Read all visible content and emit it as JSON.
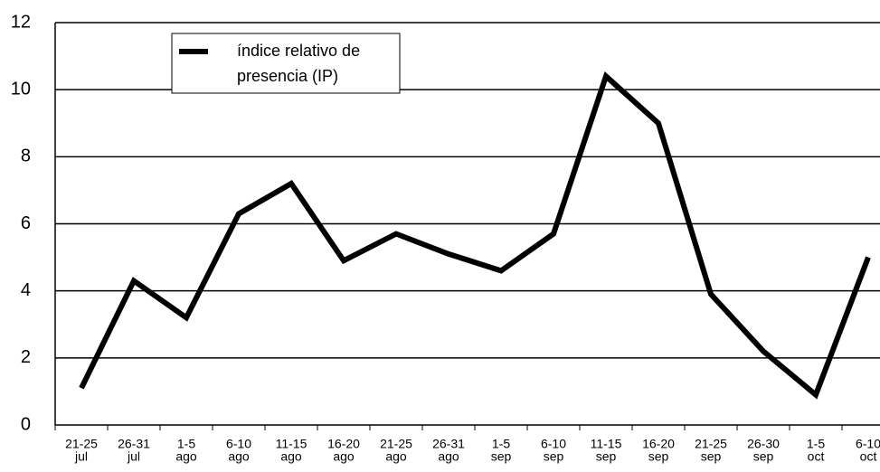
{
  "chart_data": {
    "type": "line",
    "categories": [
      [
        "21-25",
        "jul"
      ],
      [
        "26-31",
        "jul"
      ],
      [
        "1-5",
        "ago"
      ],
      [
        "6-10",
        "ago"
      ],
      [
        "11-15",
        "ago"
      ],
      [
        "16-20",
        "ago"
      ],
      [
        "21-25",
        "ago"
      ],
      [
        "26-31",
        "ago"
      ],
      [
        "1-5",
        "sep"
      ],
      [
        "6-10",
        "sep"
      ],
      [
        "11-15",
        "sep"
      ],
      [
        "16-20",
        "sep"
      ],
      [
        "21-25",
        "sep"
      ],
      [
        "26-30",
        "sep"
      ],
      [
        "1-5",
        "oct"
      ],
      [
        "6-10",
        "oct"
      ]
    ],
    "series": [
      {
        "name": "índice relativo de presencia (IP)",
        "color": "#000000",
        "values": [
          1.1,
          4.3,
          3.2,
          6.3,
          7.2,
          4.9,
          5.7,
          5.1,
          4.6,
          5.7,
          10.4,
          9.0,
          3.9,
          2.2,
          0.9,
          5.0
        ]
      }
    ],
    "ylim": [
      0,
      12
    ],
    "yticks": [
      0,
      2,
      4,
      6,
      8,
      10,
      12
    ],
    "grid": true,
    "legend": "top-left"
  }
}
